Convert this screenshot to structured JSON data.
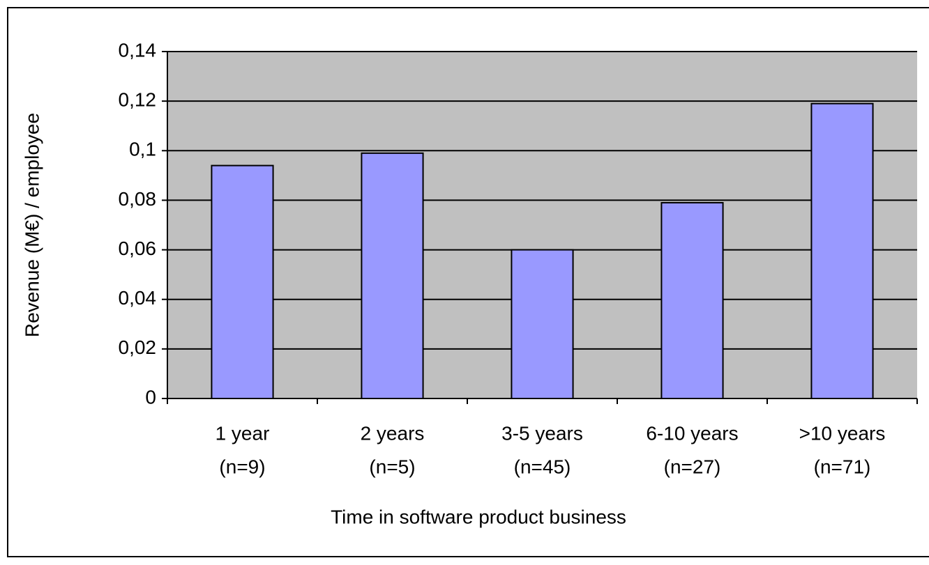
{
  "chart_data": {
    "type": "bar",
    "y_label": "Revenue (M€) / employee",
    "x_label": "Time in software product business",
    "categories": [
      [
        "1 year",
        "(n=9)"
      ],
      [
        "2 years",
        "(n=5)"
      ],
      [
        "3-5 years",
        "(n=45)"
      ],
      [
        "6-10 years",
        "(n=27)"
      ],
      [
        ">10 years",
        "(n=71)"
      ]
    ],
    "values": [
      0.094,
      0.099,
      0.06,
      0.079,
      0.119
    ],
    "color": "#9999ff",
    "ylim": [
      0,
      0.14
    ],
    "yticks": [
      0,
      {
        "value": 0.02,
        "label": "0,02"
      },
      {
        "value": 0.04,
        "label": "0,04"
      },
      {
        "value": 0.06,
        "label": "0,06"
      },
      {
        "value": 0.08,
        "label": "0,08"
      },
      {
        "value": 0.1,
        "label": "0,1"
      },
      {
        "value": 0.12,
        "label": "0,12"
      },
      {
        "value": 0.14,
        "label": "0,14"
      }
    ],
    "grid": true
  }
}
